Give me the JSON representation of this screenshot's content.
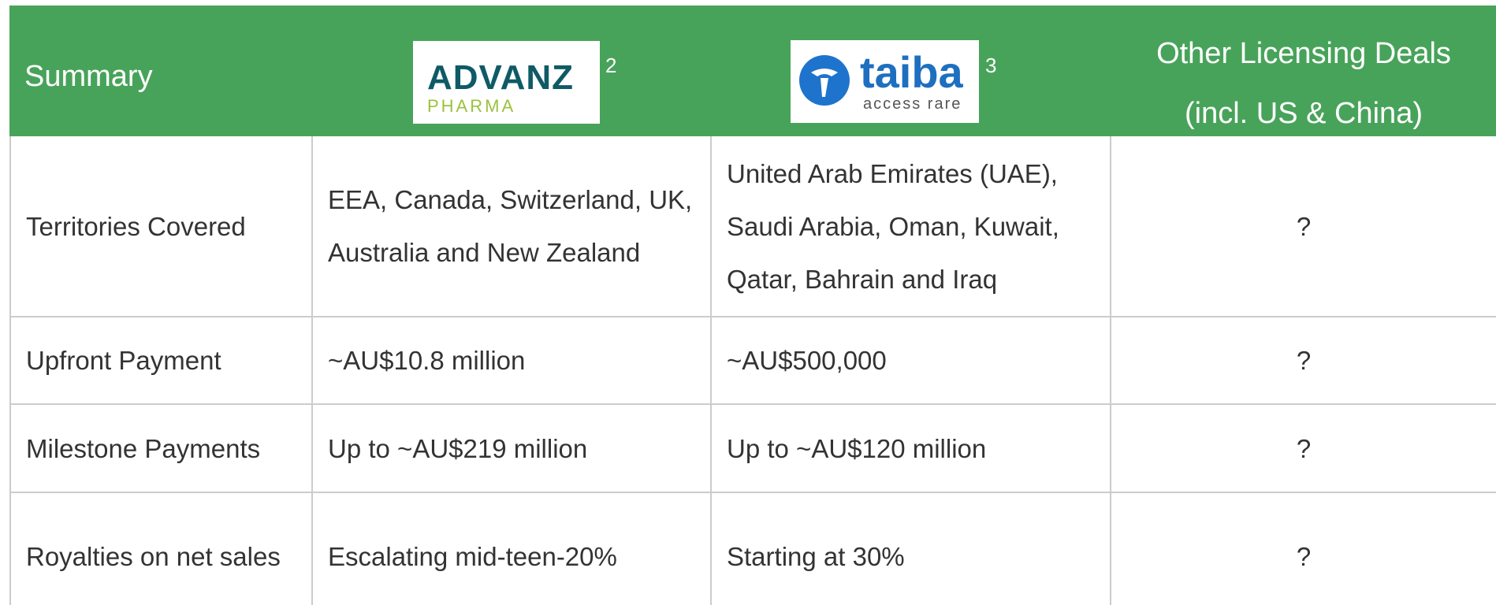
{
  "header": {
    "summary": "Summary",
    "columns": [
      {
        "logo_name": "ADVANZ",
        "logo_sub": "PHARMA",
        "note": "2"
      },
      {
        "logo_name": "taiba",
        "logo_sub": "access rare",
        "note": "3"
      },
      {
        "title_lines": [
          "Other Licensing Deals",
          "(incl. US & China)"
        ]
      }
    ]
  },
  "table": {
    "rows": [
      [
        "Territories Covered",
        "EEA, Canada, Switzerland, UK, Australia and New Zealand",
        "United Arab Emirates (UAE), Saudi Arabia, Oman, Kuwait, Qatar, Bahrain and Iraq",
        "?"
      ],
      [
        "Upfront Payment",
        "~AU$10.8 million",
        "~AU$500,000",
        "?"
      ],
      [
        "Milestone Payments",
        "Up to ~AU$219 million",
        "Up to ~AU$120 million",
        "?"
      ],
      [
        "Royalties on net sales",
        "Escalating mid-teen-20%",
        "Starting at 30%",
        "?"
      ]
    ]
  }
}
